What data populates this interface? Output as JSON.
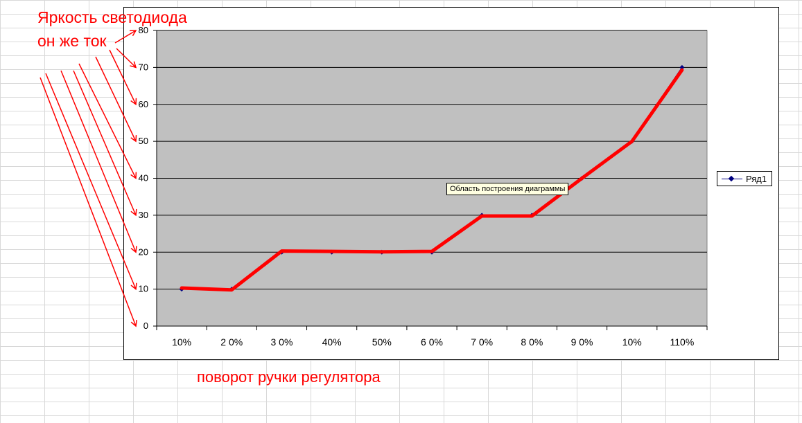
{
  "annotations": {
    "y_line1": "Яркость светодиода",
    "y_line2": "он же ток",
    "x_label": "поворот ручки регулятора"
  },
  "tooltip": "Область построения диаграммы",
  "colors": {
    "plot_area": "#c0c0c0",
    "series": "#000080",
    "annotation": "#ff0000",
    "tooltip_bg": "#ffffe1"
  },
  "chart_data": {
    "type": "line",
    "categories": [
      "10%",
      "2 0%",
      "3 0%",
      "40%",
      "50%",
      "6 0%",
      "7 0%",
      "8 0%",
      "9 0%",
      "10%",
      "110%"
    ],
    "series": [
      {
        "name": "Ряд1",
        "values": [
          10,
          10,
          20,
          20,
          20,
          20,
          30,
          30,
          40,
          50,
          70
        ]
      }
    ],
    "overlay_line_values": [
      10.3,
      9.8,
      20.3,
      20.2,
      20.1,
      20.2,
      29.8,
      29.8,
      40.0,
      50.0,
      69.3
    ],
    "yticks": [
      0,
      10,
      20,
      30,
      40,
      50,
      60,
      70,
      80
    ],
    "ylim": [
      0,
      80
    ],
    "grid": true,
    "legend_position": "right"
  }
}
